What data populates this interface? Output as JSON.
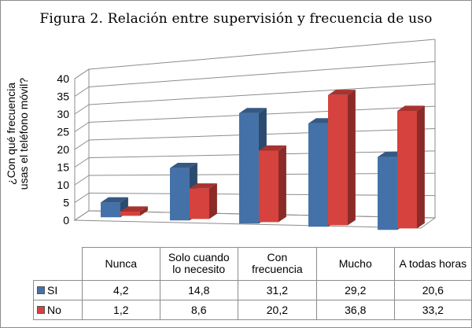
{
  "chart_data": {
    "type": "bar",
    "title": "Figura 2. Relación entre supervisión y frecuencia de uso",
    "ylabel_line1": "¿Con qué frecuencia",
    "ylabel_line2": "usas el teléfono móvil?",
    "ylim": [
      0,
      40
    ],
    "yticks": [
      "0",
      "5",
      "10",
      "15",
      "20",
      "25",
      "30",
      "35",
      "40"
    ],
    "categories": [
      {
        "line1": "Nunca",
        "line2": ""
      },
      {
        "line1": "Solo cuando",
        "line2": "lo necesito"
      },
      {
        "line1": "Con",
        "line2": "frecuencia"
      },
      {
        "line1": "Mucho",
        "line2": ""
      },
      {
        "line1": "A todas horas",
        "line2": ""
      }
    ],
    "series": [
      {
        "name": "SI",
        "color": "#4472a8",
        "values": [
          4.2,
          14.8,
          31.2,
          29.2,
          20.6
        ],
        "labels": [
          "4,2",
          "14,8",
          "31,2",
          "29,2",
          "20,6"
        ]
      },
      {
        "name": "No",
        "color": "#d6423d",
        "values": [
          1.2,
          8.6,
          20.2,
          36.8,
          33.2
        ],
        "labels": [
          "1,2",
          "8,6",
          "20,2",
          "36,8",
          "33,2"
        ]
      }
    ]
  }
}
